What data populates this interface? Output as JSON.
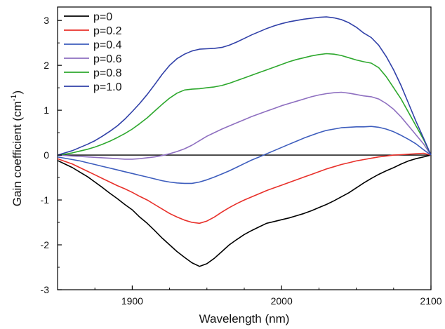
{
  "chart_data": {
    "type": "line",
    "xlabel": "Wavelength (nm)",
    "ylabel_main": "Gain coefficient (cm",
    "ylabel_sup": "-1",
    "ylabel_close": ")",
    "xlim": [
      1850,
      2100
    ],
    "ylim": [
      -3,
      3.3
    ],
    "xticks": [
      1900,
      2000,
      2100
    ],
    "yticks": [
      -3,
      -2,
      -1,
      0,
      1,
      2,
      3
    ],
    "grid": false,
    "legend_position": "top-left",
    "zero_line": true,
    "series": [
      {
        "name": "p=0",
        "color": "#000000",
        "points": [
          [
            1850,
            -0.12
          ],
          [
            1855,
            -0.2
          ],
          [
            1860,
            -0.28
          ],
          [
            1865,
            -0.38
          ],
          [
            1870,
            -0.48
          ],
          [
            1875,
            -0.6
          ],
          [
            1880,
            -0.72
          ],
          [
            1885,
            -0.85
          ],
          [
            1890,
            -0.97
          ],
          [
            1895,
            -1.1
          ],
          [
            1900,
            -1.22
          ],
          [
            1905,
            -1.38
          ],
          [
            1910,
            -1.52
          ],
          [
            1915,
            -1.68
          ],
          [
            1920,
            -1.85
          ],
          [
            1925,
            -2.0
          ],
          [
            1930,
            -2.15
          ],
          [
            1935,
            -2.28
          ],
          [
            1940,
            -2.4
          ],
          [
            1945,
            -2.48
          ],
          [
            1950,
            -2.42
          ],
          [
            1955,
            -2.3
          ],
          [
            1960,
            -2.15
          ],
          [
            1965,
            -2.0
          ],
          [
            1970,
            -1.88
          ],
          [
            1975,
            -1.77
          ],
          [
            1980,
            -1.68
          ],
          [
            1985,
            -1.6
          ],
          [
            1990,
            -1.52
          ],
          [
            1995,
            -1.48
          ],
          [
            2000,
            -1.44
          ],
          [
            2005,
            -1.4
          ],
          [
            2010,
            -1.35
          ],
          [
            2015,
            -1.3
          ],
          [
            2020,
            -1.24
          ],
          [
            2025,
            -1.17
          ],
          [
            2030,
            -1.1
          ],
          [
            2035,
            -1.02
          ],
          [
            2040,
            -0.93
          ],
          [
            2045,
            -0.84
          ],
          [
            2050,
            -0.73
          ],
          [
            2055,
            -0.62
          ],
          [
            2060,
            -0.52
          ],
          [
            2065,
            -0.43
          ],
          [
            2070,
            -0.35
          ],
          [
            2075,
            -0.28
          ],
          [
            2080,
            -0.2
          ],
          [
            2085,
            -0.13
          ],
          [
            2090,
            -0.08
          ],
          [
            2095,
            -0.04
          ],
          [
            2100,
            0.0
          ]
        ]
      },
      {
        "name": "p=0.2",
        "color": "#e8302a",
        "points": [
          [
            1850,
            -0.08
          ],
          [
            1855,
            -0.14
          ],
          [
            1860,
            -0.2
          ],
          [
            1865,
            -0.28
          ],
          [
            1870,
            -0.36
          ],
          [
            1875,
            -0.44
          ],
          [
            1880,
            -0.52
          ],
          [
            1885,
            -0.6
          ],
          [
            1890,
            -0.68
          ],
          [
            1895,
            -0.75
          ],
          [
            1900,
            -0.83
          ],
          [
            1905,
            -0.92
          ],
          [
            1910,
            -1.0
          ],
          [
            1915,
            -1.1
          ],
          [
            1920,
            -1.2
          ],
          [
            1925,
            -1.3
          ],
          [
            1930,
            -1.38
          ],
          [
            1935,
            -1.45
          ],
          [
            1940,
            -1.5
          ],
          [
            1945,
            -1.52
          ],
          [
            1950,
            -1.47
          ],
          [
            1955,
            -1.38
          ],
          [
            1960,
            -1.27
          ],
          [
            1965,
            -1.17
          ],
          [
            1970,
            -1.08
          ],
          [
            1975,
            -1.0
          ],
          [
            1980,
            -0.93
          ],
          [
            1985,
            -0.86
          ],
          [
            1990,
            -0.79
          ],
          [
            1995,
            -0.73
          ],
          [
            2000,
            -0.67
          ],
          [
            2005,
            -0.61
          ],
          [
            2010,
            -0.55
          ],
          [
            2015,
            -0.49
          ],
          [
            2020,
            -0.43
          ],
          [
            2025,
            -0.37
          ],
          [
            2030,
            -0.31
          ],
          [
            2035,
            -0.26
          ],
          [
            2040,
            -0.21
          ],
          [
            2045,
            -0.17
          ],
          [
            2050,
            -0.13
          ],
          [
            2055,
            -0.1
          ],
          [
            2060,
            -0.07
          ],
          [
            2065,
            -0.04
          ],
          [
            2070,
            -0.02
          ],
          [
            2075,
            0.0
          ],
          [
            2080,
            0.01
          ],
          [
            2085,
            0.02
          ],
          [
            2090,
            0.03
          ],
          [
            2095,
            0.04
          ],
          [
            2100,
            0.0
          ]
        ]
      },
      {
        "name": "p=0.4",
        "color": "#3d5dbd",
        "points": [
          [
            1850,
            -0.04
          ],
          [
            1855,
            -0.07
          ],
          [
            1860,
            -0.1
          ],
          [
            1865,
            -0.13
          ],
          [
            1870,
            -0.17
          ],
          [
            1875,
            -0.21
          ],
          [
            1880,
            -0.25
          ],
          [
            1885,
            -0.29
          ],
          [
            1890,
            -0.33
          ],
          [
            1895,
            -0.37
          ],
          [
            1900,
            -0.41
          ],
          [
            1905,
            -0.45
          ],
          [
            1910,
            -0.49
          ],
          [
            1915,
            -0.53
          ],
          [
            1920,
            -0.57
          ],
          [
            1925,
            -0.6
          ],
          [
            1930,
            -0.62
          ],
          [
            1935,
            -0.63
          ],
          [
            1940,
            -0.63
          ],
          [
            1945,
            -0.6
          ],
          [
            1950,
            -0.55
          ],
          [
            1955,
            -0.49
          ],
          [
            1960,
            -0.42
          ],
          [
            1965,
            -0.35
          ],
          [
            1970,
            -0.27
          ],
          [
            1975,
            -0.19
          ],
          [
            1980,
            -0.11
          ],
          [
            1985,
            -0.04
          ],
          [
            1990,
            0.03
          ],
          [
            1995,
            0.1
          ],
          [
            2000,
            0.17
          ],
          [
            2005,
            0.24
          ],
          [
            2010,
            0.31
          ],
          [
            2015,
            0.38
          ],
          [
            2020,
            0.44
          ],
          [
            2025,
            0.5
          ],
          [
            2030,
            0.55
          ],
          [
            2035,
            0.58
          ],
          [
            2040,
            0.61
          ],
          [
            2045,
            0.62
          ],
          [
            2050,
            0.63
          ],
          [
            2055,
            0.63
          ],
          [
            2060,
            0.64
          ],
          [
            2065,
            0.62
          ],
          [
            2070,
            0.58
          ],
          [
            2075,
            0.52
          ],
          [
            2080,
            0.44
          ],
          [
            2085,
            0.35
          ],
          [
            2090,
            0.25
          ],
          [
            2095,
            0.12
          ],
          [
            2100,
            0.0
          ]
        ]
      },
      {
        "name": "p=0.6",
        "color": "#8e6fc0",
        "points": [
          [
            1850,
            0.0
          ],
          [
            1855,
            -0.01
          ],
          [
            1860,
            -0.02
          ],
          [
            1865,
            -0.03
          ],
          [
            1870,
            -0.04
          ],
          [
            1875,
            -0.05
          ],
          [
            1880,
            -0.06
          ],
          [
            1885,
            -0.07
          ],
          [
            1890,
            -0.08
          ],
          [
            1895,
            -0.09
          ],
          [
            1900,
            -0.09
          ],
          [
            1905,
            -0.08
          ],
          [
            1910,
            -0.06
          ],
          [
            1915,
            -0.04
          ],
          [
            1920,
            -0.01
          ],
          [
            1925,
            0.03
          ],
          [
            1930,
            0.08
          ],
          [
            1935,
            0.14
          ],
          [
            1940,
            0.22
          ],
          [
            1945,
            0.32
          ],
          [
            1950,
            0.42
          ],
          [
            1955,
            0.5
          ],
          [
            1960,
            0.58
          ],
          [
            1965,
            0.65
          ],
          [
            1970,
            0.72
          ],
          [
            1975,
            0.79
          ],
          [
            1980,
            0.86
          ],
          [
            1985,
            0.92
          ],
          [
            1990,
            0.98
          ],
          [
            1995,
            1.04
          ],
          [
            2000,
            1.1
          ],
          [
            2005,
            1.15
          ],
          [
            2010,
            1.2
          ],
          [
            2015,
            1.25
          ],
          [
            2020,
            1.3
          ],
          [
            2025,
            1.34
          ],
          [
            2030,
            1.37
          ],
          [
            2035,
            1.39
          ],
          [
            2040,
            1.4
          ],
          [
            2045,
            1.38
          ],
          [
            2050,
            1.35
          ],
          [
            2055,
            1.32
          ],
          [
            2060,
            1.3
          ],
          [
            2065,
            1.25
          ],
          [
            2070,
            1.15
          ],
          [
            2075,
            1.02
          ],
          [
            2080,
            0.85
          ],
          [
            2085,
            0.65
          ],
          [
            2090,
            0.45
          ],
          [
            2095,
            0.25
          ],
          [
            2100,
            0.0
          ]
        ]
      },
      {
        "name": "p=0.8",
        "color": "#2ea82e",
        "points": [
          [
            1850,
            0.0
          ],
          [
            1855,
            0.02
          ],
          [
            1860,
            0.05
          ],
          [
            1865,
            0.09
          ],
          [
            1870,
            0.13
          ],
          [
            1875,
            0.18
          ],
          [
            1880,
            0.24
          ],
          [
            1885,
            0.31
          ],
          [
            1890,
            0.39
          ],
          [
            1895,
            0.48
          ],
          [
            1900,
            0.58
          ],
          [
            1905,
            0.7
          ],
          [
            1910,
            0.83
          ],
          [
            1915,
            0.98
          ],
          [
            1920,
            1.13
          ],
          [
            1925,
            1.27
          ],
          [
            1930,
            1.38
          ],
          [
            1935,
            1.45
          ],
          [
            1940,
            1.47
          ],
          [
            1945,
            1.48
          ],
          [
            1950,
            1.5
          ],
          [
            1955,
            1.52
          ],
          [
            1960,
            1.55
          ],
          [
            1965,
            1.6
          ],
          [
            1970,
            1.66
          ],
          [
            1975,
            1.72
          ],
          [
            1980,
            1.78
          ],
          [
            1985,
            1.84
          ],
          [
            1990,
            1.9
          ],
          [
            1995,
            1.96
          ],
          [
            2000,
            2.02
          ],
          [
            2005,
            2.08
          ],
          [
            2010,
            2.13
          ],
          [
            2015,
            2.17
          ],
          [
            2020,
            2.21
          ],
          [
            2025,
            2.24
          ],
          [
            2030,
            2.26
          ],
          [
            2035,
            2.25
          ],
          [
            2040,
            2.22
          ],
          [
            2045,
            2.17
          ],
          [
            2050,
            2.12
          ],
          [
            2055,
            2.08
          ],
          [
            2060,
            2.05
          ],
          [
            2065,
            1.95
          ],
          [
            2070,
            1.75
          ],
          [
            2075,
            1.5
          ],
          [
            2080,
            1.25
          ],
          [
            2085,
            0.95
          ],
          [
            2090,
            0.65
          ],
          [
            2095,
            0.35
          ],
          [
            2100,
            0.0
          ]
        ]
      },
      {
        "name": "p=1.0",
        "color": "#3040a8",
        "points": [
          [
            1850,
            0.0
          ],
          [
            1855,
            0.05
          ],
          [
            1860,
            0.1
          ],
          [
            1865,
            0.17
          ],
          [
            1870,
            0.24
          ],
          [
            1875,
            0.32
          ],
          [
            1880,
            0.42
          ],
          [
            1885,
            0.53
          ],
          [
            1890,
            0.65
          ],
          [
            1895,
            0.8
          ],
          [
            1900,
            0.97
          ],
          [
            1905,
            1.15
          ],
          [
            1910,
            1.35
          ],
          [
            1915,
            1.57
          ],
          [
            1920,
            1.8
          ],
          [
            1925,
            2.0
          ],
          [
            1930,
            2.15
          ],
          [
            1935,
            2.25
          ],
          [
            1940,
            2.32
          ],
          [
            1945,
            2.36
          ],
          [
            1950,
            2.37
          ],
          [
            1955,
            2.38
          ],
          [
            1960,
            2.4
          ],
          [
            1965,
            2.45
          ],
          [
            1970,
            2.52
          ],
          [
            1975,
            2.6
          ],
          [
            1980,
            2.68
          ],
          [
            1985,
            2.75
          ],
          [
            1990,
            2.82
          ],
          [
            1995,
            2.88
          ],
          [
            2000,
            2.93
          ],
          [
            2005,
            2.97
          ],
          [
            2010,
            3.0
          ],
          [
            2015,
            3.03
          ],
          [
            2020,
            3.05
          ],
          [
            2025,
            3.07
          ],
          [
            2030,
            3.08
          ],
          [
            2035,
            3.06
          ],
          [
            2040,
            3.02
          ],
          [
            2045,
            2.95
          ],
          [
            2050,
            2.85
          ],
          [
            2055,
            2.72
          ],
          [
            2060,
            2.62
          ],
          [
            2065,
            2.45
          ],
          [
            2070,
            2.2
          ],
          [
            2075,
            1.9
          ],
          [
            2080,
            1.55
          ],
          [
            2085,
            1.15
          ],
          [
            2090,
            0.75
          ],
          [
            2095,
            0.38
          ],
          [
            2100,
            0.0
          ]
        ]
      }
    ]
  }
}
